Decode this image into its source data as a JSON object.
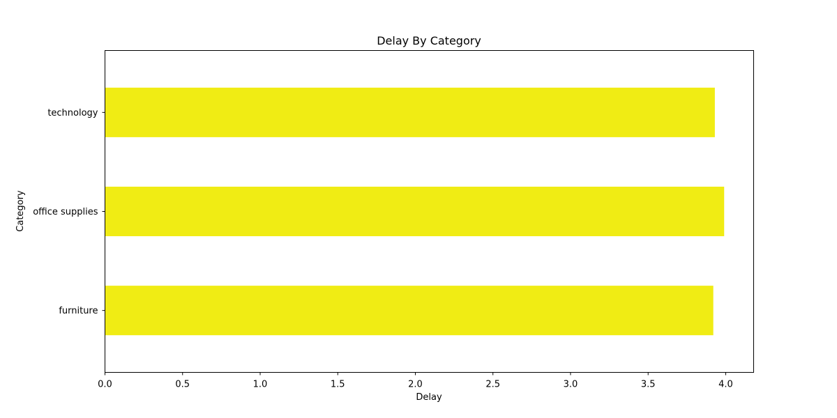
{
  "chart_data": {
    "type": "bar",
    "orientation": "horizontal",
    "title": "Delay By Category",
    "xlabel": "Delay",
    "ylabel": "Category",
    "categories": [
      "furniture",
      "office supplies",
      "technology"
    ],
    "values": [
      3.92,
      3.99,
      3.93
    ],
    "xlim": [
      0,
      4.18
    ],
    "xticks": [
      "0.0",
      "0.5",
      "1.0",
      "1.5",
      "2.0",
      "2.5",
      "3.0",
      "3.5",
      "4.0"
    ],
    "grid": false,
    "legend": "none",
    "bar_color": "#f0ec14"
  }
}
